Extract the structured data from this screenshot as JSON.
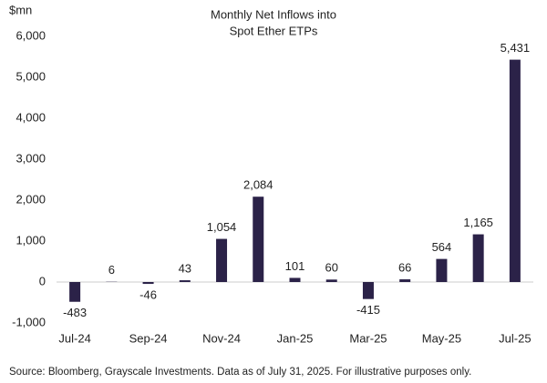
{
  "chart_data": {
    "type": "bar",
    "title": [
      "Monthly Net Inflows into",
      "Spot Ether ETPs"
    ],
    "y_label": "$mn",
    "categories": [
      "Jul-24",
      null,
      "Sep-24",
      null,
      "Nov-24",
      null,
      "Jan-25",
      null,
      "Mar-25",
      null,
      "May-25",
      null,
      "Jul-25"
    ],
    "values": [
      -483,
      6,
      -46,
      43,
      1054,
      2084,
      101,
      60,
      -415,
      66,
      564,
      1165,
      5431
    ],
    "value_labels": [
      "-483",
      "6",
      "-46",
      "43",
      "1,054",
      "2,084",
      "101",
      "60",
      "-415",
      "66",
      "564",
      "1,165",
      "5,431"
    ],
    "color": "#2b2248",
    "ylim": [
      -1000,
      6000
    ],
    "yticks": [
      {
        "value": -1000,
        "label": "-1,000"
      },
      0,
      {
        "value": 1000,
        "label": "1,000"
      },
      {
        "value": 2000,
        "label": "2,000"
      },
      {
        "value": 3000,
        "label": "3,000"
      },
      {
        "value": 4000,
        "label": "4,000"
      },
      {
        "value": 5000,
        "label": "5,000"
      },
      {
        "value": 6000,
        "label": "6,000"
      }
    ],
    "grid": false,
    "source": "Source: Bloomberg, Grayscale Investments. Data as of July 31, 2025. For illustrative purposes only."
  }
}
